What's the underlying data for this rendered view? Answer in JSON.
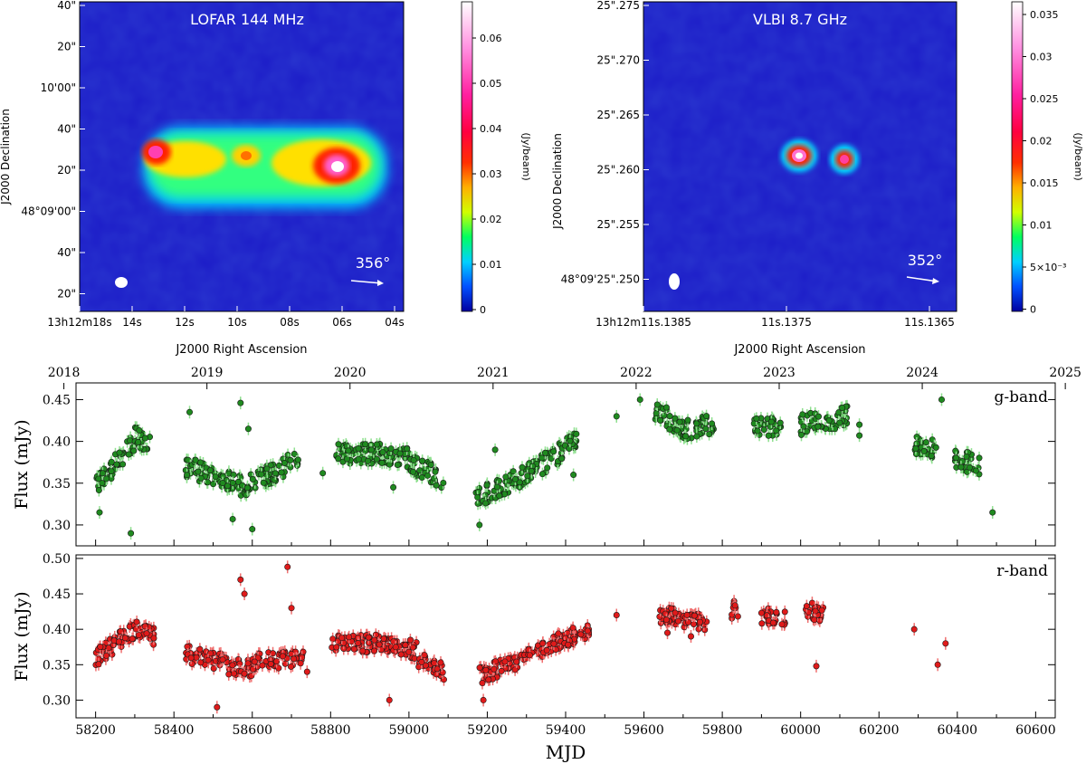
{
  "colors": {
    "g_band": "#1f8a1f",
    "g_err": "#8fe08f",
    "r_band": "#e01a1a",
    "r_err": "#f07070",
    "map_bg": "#1c1cc8"
  },
  "radio": {
    "left": {
      "title": "LOFAR 144 MHz",
      "ylabel": "J2000 Declination",
      "xlabel": "J2000 Right Ascension",
      "yticks": [
        "40\"",
        "20\"",
        "10'00\"",
        "40\"",
        "20\"",
        "48°09'00\"",
        "40\"",
        "20\""
      ],
      "xticks": [
        "13h12m18s",
        "14s",
        "12s",
        "10s",
        "08s",
        "06s",
        "04s"
      ],
      "cbar_ticks": [
        "0.06",
        "0.05",
        "0.04",
        "0.03",
        "0.02",
        "0.01",
        "0"
      ],
      "cbar_label": "(Jy/beam)",
      "pa": "356°"
    },
    "right": {
      "title": "VLBI 8.7 GHz",
      "ylabel": "J2000 Declination",
      "xlabel": "J2000 Right Ascension",
      "yticks": [
        "25\".275",
        "25\".270",
        "25\".265",
        "25\".260",
        "25\".255",
        "48°09'25\".250"
      ],
      "xticks": [
        "13h12m11s.1385",
        "11s.1375",
        "11s.1365"
      ],
      "cbar_ticks": [
        "0.035",
        "0.03",
        "0.025",
        "0.02",
        "0.015",
        "0.01",
        "5×10⁻³",
        "0"
      ],
      "cbar_label": "(Jy/beam)",
      "pa": "352°"
    }
  },
  "chart_data": [
    {
      "type": "scatter",
      "band": "g-band",
      "ylabel": "Flux (mJy)",
      "xlabel": "",
      "top_axis_years": [
        "2018",
        "2019",
        "2020",
        "2021",
        "2022",
        "2023",
        "2024",
        "2025"
      ],
      "xlim": [
        58150,
        60650
      ],
      "ylim": [
        0.275,
        0.47
      ],
      "yticks": [
        "0.30",
        "0.35",
        "0.40",
        "0.45"
      ],
      "segments": [
        [
          58200,
          0.345,
          58300,
          0.4
        ],
        [
          58300,
          0.405,
          58340,
          0.4
        ],
        [
          58430,
          0.37,
          58520,
          0.355
        ],
        [
          58520,
          0.355,
          58580,
          0.345
        ],
        [
          58580,
          0.345,
          58720,
          0.38
        ],
        [
          58810,
          0.385,
          58930,
          0.385
        ],
        [
          58930,
          0.385,
          59000,
          0.38
        ],
        [
          59000,
          0.375,
          59090,
          0.355
        ],
        [
          59170,
          0.33,
          59300,
          0.36
        ],
        [
          59300,
          0.36,
          59430,
          0.4
        ],
        [
          59625,
          0.44,
          59700,
          0.415
        ],
        [
          59700,
          0.415,
          59780,
          0.42
        ],
        [
          59880,
          0.42,
          59950,
          0.415
        ],
        [
          60000,
          0.42,
          60120,
          0.43
        ],
        [
          60290,
          0.395,
          60350,
          0.39
        ],
        [
          60390,
          0.38,
          60460,
          0.37
        ]
      ],
      "points": [
        [
          58210,
          0.315
        ],
        [
          58290,
          0.29
        ],
        [
          58440,
          0.435
        ],
        [
          58550,
          0.307
        ],
        [
          58570,
          0.446
        ],
        [
          58590,
          0.415
        ],
        [
          58600,
          0.295
        ],
        [
          58780,
          0.362
        ],
        [
          59530,
          0.43
        ],
        [
          59590,
          0.45
        ],
        [
          60150,
          0.42
        ],
        [
          60150,
          0.407
        ],
        [
          60360,
          0.45
        ],
        [
          60490,
          0.315
        ],
        [
          59220,
          0.39
        ],
        [
          59180,
          0.3
        ],
        [
          59420,
          0.36
        ],
        [
          58960,
          0.345
        ]
      ]
    },
    {
      "type": "scatter",
      "band": "r-band",
      "ylabel": "Flux (mJy)",
      "xlabel": "MJD",
      "xlim": [
        58150,
        60650
      ],
      "ylim": [
        0.275,
        0.505
      ],
      "yticks": [
        "0.30",
        "0.35",
        "0.40",
        "0.45",
        "0.50"
      ],
      "xticks": [
        "58200",
        "58400",
        "58600",
        "58800",
        "59000",
        "59200",
        "59400",
        "59600",
        "59800",
        "60000",
        "60200",
        "60400",
        "60600"
      ],
      "segments": [
        [
          58200,
          0.36,
          58300,
          0.4
        ],
        [
          58300,
          0.4,
          58350,
          0.39
        ],
        [
          58430,
          0.365,
          58520,
          0.355
        ],
        [
          58520,
          0.35,
          58600,
          0.345
        ],
        [
          58600,
          0.355,
          58730,
          0.36
        ],
        [
          58800,
          0.38,
          58950,
          0.38
        ],
        [
          58950,
          0.38,
          59020,
          0.37
        ],
        [
          59020,
          0.36,
          59090,
          0.34
        ],
        [
          59180,
          0.335,
          59300,
          0.36
        ],
        [
          59300,
          0.365,
          59460,
          0.4
        ],
        [
          59640,
          0.42,
          59700,
          0.415
        ],
        [
          59700,
          0.415,
          59760,
          0.41
        ],
        [
          59820,
          0.425,
          59840,
          0.43
        ],
        [
          59900,
          0.42,
          59960,
          0.415
        ],
        [
          60010,
          0.43,
          60060,
          0.42
        ]
      ],
      "points": [
        [
          58510,
          0.29
        ],
        [
          58570,
          0.47
        ],
        [
          58580,
          0.45
        ],
        [
          58690,
          0.488
        ],
        [
          58700,
          0.43
        ],
        [
          58950,
          0.3
        ],
        [
          59190,
          0.3
        ],
        [
          59530,
          0.42
        ],
        [
          60040,
          0.348
        ],
        [
          60290,
          0.4
        ],
        [
          60350,
          0.35
        ],
        [
          60370,
          0.38
        ],
        [
          59720,
          0.39
        ],
        [
          59660,
          0.395
        ],
        [
          58740,
          0.34
        ]
      ]
    }
  ]
}
